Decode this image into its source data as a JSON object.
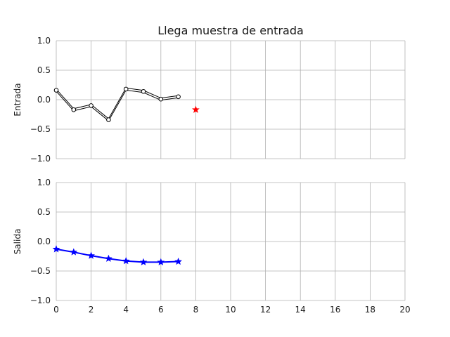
{
  "figure_title": "Llega muestra de entrada",
  "chart_data": [
    {
      "type": "line",
      "ylabel": "Entrada",
      "xlim": [
        0,
        20
      ],
      "ylim": [
        -1.0,
        1.0
      ],
      "yticks": [
        -1.0,
        -0.5,
        0.0,
        0.5,
        1.0
      ],
      "ytick_labels": [
        "−1.0",
        "−0.5",
        "0.0",
        "0.5",
        "1.0"
      ],
      "grid": true,
      "series": [
        {
          "x": [
            0,
            1,
            2,
            3,
            4,
            5,
            6,
            7
          ],
          "y": [
            0.16,
            -0.17,
            -0.1,
            -0.34,
            0.18,
            0.14,
            0.01,
            0.05
          ],
          "color": "#000000",
          "marker": "circle-open"
        },
        {
          "x": [
            8
          ],
          "y": [
            -0.17
          ],
          "color": "#ff0000",
          "marker": "star"
        }
      ]
    },
    {
      "type": "line",
      "ylabel": "Salida",
      "xlim": [
        0,
        20
      ],
      "ylim": [
        -1.0,
        1.0
      ],
      "xticks": [
        0,
        2,
        4,
        6,
        8,
        10,
        12,
        14,
        16,
        18,
        20
      ],
      "xtick_labels": [
        "0",
        "2",
        "4",
        "6",
        "8",
        "10",
        "12",
        "14",
        "16",
        "18",
        "20"
      ],
      "yticks": [
        -1.0,
        -0.5,
        0.0,
        0.5,
        1.0
      ],
      "ytick_labels": [
        "−1.0",
        "−0.5",
        "0.0",
        "0.5",
        "1.0"
      ],
      "grid": true,
      "series": [
        {
          "x": [
            0,
            1,
            2,
            3,
            4,
            5,
            6,
            7
          ],
          "y": [
            -0.13,
            -0.18,
            -0.24,
            -0.29,
            -0.33,
            -0.35,
            -0.35,
            -0.34
          ],
          "color": "#0000ff",
          "marker": "star"
        }
      ]
    }
  ]
}
